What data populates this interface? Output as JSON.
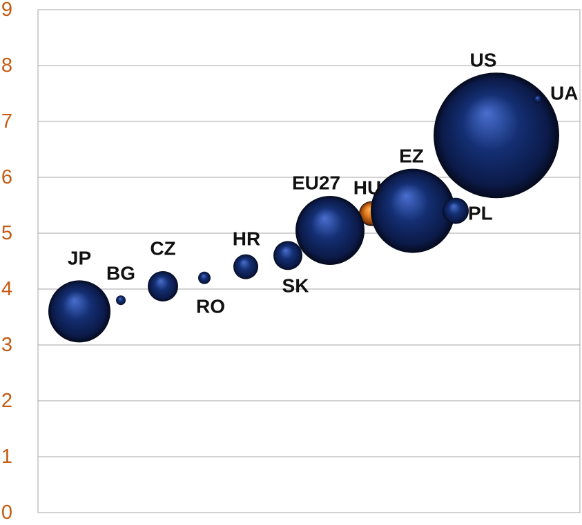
{
  "chart_data": {
    "type": "bubble",
    "ylim": [
      0,
      9
    ],
    "y_ticks": [
      "0",
      "1",
      "2",
      "3",
      "4",
      "5",
      "6",
      "7",
      "8",
      "9"
    ],
    "grid": true,
    "legend": "none",
    "points": [
      {
        "label": "JP",
        "y": 3.6,
        "size": 17,
        "color": "#142f73"
      },
      {
        "label": "BG",
        "y": 3.8,
        "size": 1,
        "color": "#142f73"
      },
      {
        "label": "CZ",
        "y": 4.05,
        "size": 3.5,
        "color": "#142f73"
      },
      {
        "label": "RO",
        "y": 4.2,
        "size": 1.2,
        "color": "#142f73"
      },
      {
        "label": "HR",
        "y": 4.4,
        "size": 2.8,
        "color": "#142f73"
      },
      {
        "label": "SK",
        "y": 4.6,
        "size": 3.7,
        "color": "#142f73"
      },
      {
        "label": "EU27",
        "y": 5.05,
        "size": 17,
        "color": "#142f73"
      },
      {
        "label": "HU",
        "y": 5.35,
        "size": 2.5,
        "color": "#e07b1f"
      },
      {
        "label": "EZ",
        "y": 5.4,
        "size": 25,
        "color": "#142f73"
      },
      {
        "label": "PL",
        "y": 5.4,
        "size": 2.8,
        "color": "#142f73"
      },
      {
        "label": "US",
        "y": 6.75,
        "size": 48,
        "color": "#142f73"
      },
      {
        "label": "UA",
        "y": 7.4,
        "size": 0.2,
        "color": "#142f73"
      }
    ],
    "colors": {
      "bubble": "#142f73",
      "highlight": "#e07b1f",
      "tick_label": "#C55A11",
      "grid": "#a6a6a6"
    }
  }
}
